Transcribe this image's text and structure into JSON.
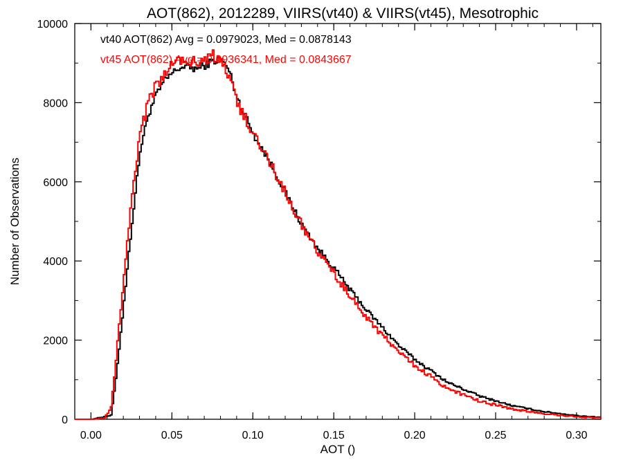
{
  "chart_data": {
    "type": "line",
    "step": true,
    "title": "AOT(862), 2012289, VIIRS(vt40) & VIIRS(vt45), Mesotrophic",
    "xlabel": "AOT ()",
    "ylabel": "Number of Observations",
    "xlim": [
      -0.01,
      0.315
    ],
    "ylim": [
      0,
      10000
    ],
    "xticks": [
      0.0,
      0.05,
      0.1,
      0.15,
      0.2,
      0.25,
      0.3
    ],
    "xtick_labels": [
      "0.00",
      "0.05",
      "0.10",
      "0.15",
      "0.20",
      "0.25",
      "0.30"
    ],
    "yticks": [
      0,
      2000,
      4000,
      6000,
      8000,
      10000
    ],
    "ytick_labels": [
      "0",
      "2000",
      "4000",
      "6000",
      "8000",
      "10000"
    ],
    "grid": false,
    "annotations": [
      {
        "text": "vt40 AOT(862) Avg = 0.0979023, Med = 0.0878143",
        "color": "#000000"
      },
      {
        "text": "vt45 AOT(862) Avg = 0.0936341, Med = 0.0843667",
        "color": "#ff0000"
      }
    ],
    "series": [
      {
        "color": "#000000",
        "x": [
          0.0,
          0.012,
          0.015,
          0.02,
          0.025,
          0.03,
          0.035,
          0.04,
          0.045,
          0.05,
          0.055,
          0.06,
          0.065,
          0.07,
          0.075,
          0.08,
          0.085,
          0.09,
          0.1,
          0.11,
          0.12,
          0.13,
          0.14,
          0.15,
          0.16,
          0.17,
          0.18,
          0.19,
          0.2,
          0.22,
          0.24,
          0.26,
          0.28,
          0.3,
          0.315
        ],
        "y": [
          0,
          100,
          1000,
          3000,
          5000,
          6800,
          7700,
          8200,
          8550,
          8750,
          8900,
          8900,
          8850,
          8950,
          9050,
          9100,
          8800,
          8100,
          7200,
          6500,
          5700,
          4900,
          4300,
          3800,
          3250,
          2750,
          2300,
          1850,
          1500,
          930,
          580,
          340,
          190,
          90,
          50
        ]
      },
      {
        "color": "#ff0000",
        "x": [
          0.0,
          0.008,
          0.012,
          0.015,
          0.02,
          0.025,
          0.03,
          0.035,
          0.04,
          0.045,
          0.05,
          0.055,
          0.06,
          0.065,
          0.07,
          0.075,
          0.08,
          0.085,
          0.09,
          0.1,
          0.11,
          0.12,
          0.13,
          0.14,
          0.15,
          0.16,
          0.17,
          0.18,
          0.19,
          0.2,
          0.22,
          0.24,
          0.26,
          0.28,
          0.3,
          0.315
        ],
        "y": [
          0,
          30,
          300,
          1500,
          3700,
          5700,
          7200,
          8000,
          8450,
          8700,
          8950,
          9050,
          9050,
          9050,
          9100,
          9200,
          9000,
          8600,
          8000,
          7200,
          6500,
          5700,
          4900,
          4200,
          3650,
          3100,
          2550,
          2100,
          1700,
          1350,
          780,
          450,
          260,
          140,
          60,
          30
        ]
      }
    ]
  }
}
